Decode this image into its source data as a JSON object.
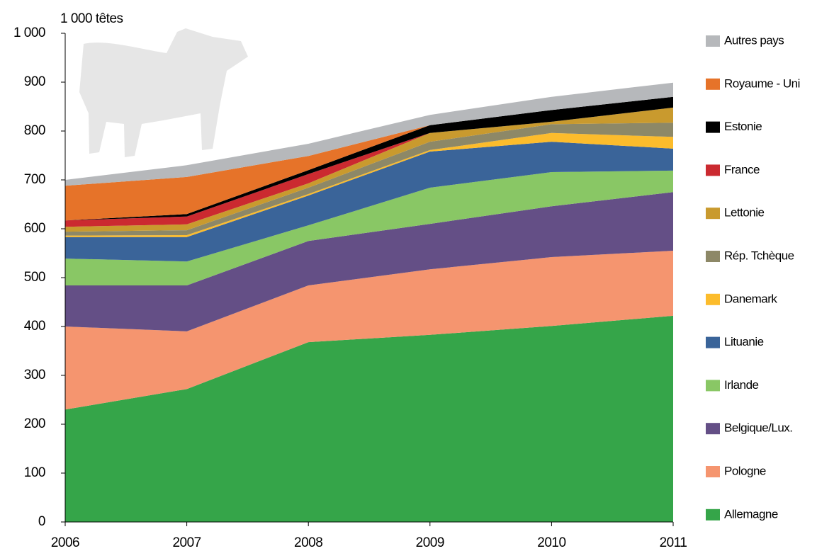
{
  "chart_data": {
    "type": "stacked-area",
    "y_label": "1 000 têtes",
    "categories": [
      "2006",
      "2007",
      "2008",
      "2009",
      "2010",
      "2011"
    ],
    "ylim": [
      0,
      1000
    ],
    "yticks": [
      0,
      100,
      200,
      300,
      400,
      500,
      600,
      700,
      800,
      900,
      {
        "value": 1000,
        "label": "1 000"
      }
    ],
    "series": [
      {
        "name": "Allemagne",
        "color": "#35a549",
        "values": [
          230,
          272,
          368,
          383,
          401,
          422
        ]
      },
      {
        "name": "Pologne",
        "color": "#f5956f",
        "values": [
          170,
          118,
          116,
          134,
          141,
          133
        ]
      },
      {
        "name": "Belgique/Lux.",
        "color": "#644f86",
        "values": [
          84,
          94,
          91,
          93,
          104,
          120
        ]
      },
      {
        "name": "Irlande",
        "color": "#89c765",
        "values": [
          55,
          49,
          32,
          74,
          70,
          44
        ]
      },
      {
        "name": "Lituanie",
        "color": "#3a6499",
        "values": [
          44,
          50,
          61,
          74,
          62,
          45
        ]
      },
      {
        "name": "Danemark",
        "color": "#fcbc2c",
        "values": [
          3,
          4,
          3,
          3,
          18,
          24
        ]
      },
      {
        "name": "Rép. Tchèque",
        "color": "#8d8867",
        "values": [
          8,
          10,
          13,
          17,
          18,
          29
        ]
      },
      {
        "name": "Lettonie",
        "color": "#c99a2e",
        "values": [
          10,
          12,
          9,
          18,
          5,
          31
        ]
      },
      {
        "name": "France",
        "color": "#cb2a30",
        "values": [
          13,
          16,
          19,
          0,
          0,
          0
        ]
      },
      {
        "name": "Estonie",
        "color": "#000000",
        "values": [
          0,
          5,
          8,
          16,
          24,
          22
        ]
      },
      {
        "name": "Royaume - Uni",
        "color": "#e67329",
        "values": [
          71,
          76,
          29,
          0,
          0,
          0
        ]
      },
      {
        "name": "Autres pays",
        "color": "#b6b8bb",
        "values": [
          12,
          24,
          25,
          21,
          27,
          29
        ]
      }
    ]
  }
}
